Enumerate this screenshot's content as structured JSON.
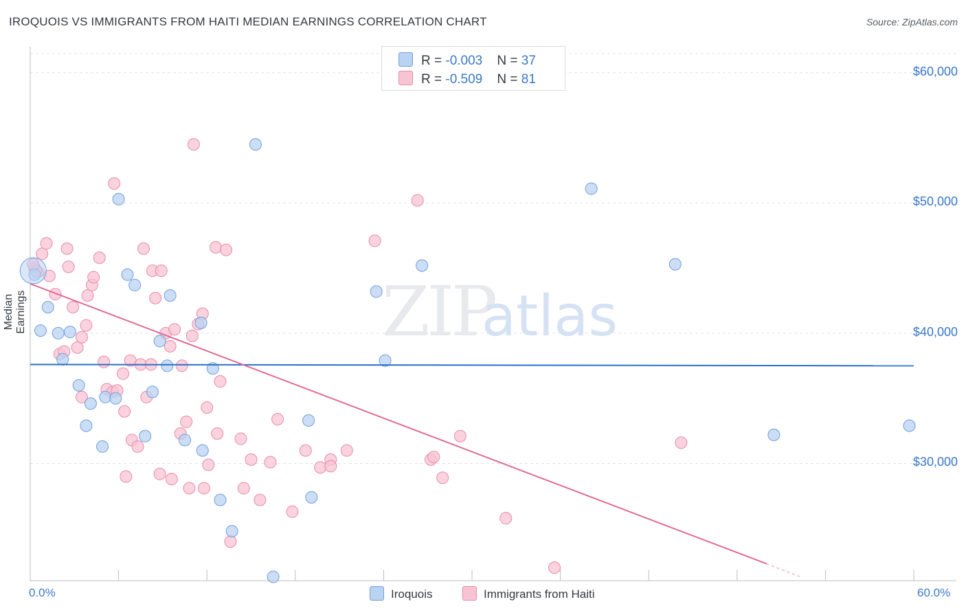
{
  "header": {
    "title": "IROQUOIS VS IMMIGRANTS FROM HAITI MEDIAN EARNINGS CORRELATION CHART",
    "source": "Source: ZipAtlas.com"
  },
  "legend": {
    "rows": [
      {
        "r_label": "R = ",
        "r_value": "-0.003",
        "n_label": "N = ",
        "n_value": "37"
      },
      {
        "r_label": "R = ",
        "r_value": "-0.509",
        "n_label": "N = ",
        "n_value": "81"
      }
    ]
  },
  "colors": {
    "iroquois_fill": "#b9d3f3",
    "iroquois_stroke": "#6f9fd8",
    "iroquois_line": "#2a6fc9",
    "haiti_fill": "#f8c4d4",
    "haiti_stroke": "#e88aa8",
    "haiti_line": "#e06a94",
    "axis_text": "#3a78c8",
    "grid": "#dde1e6"
  },
  "chart_data": {
    "type": "scatter",
    "title": "IROQUOIS VS IMMIGRANTS FROM HAITI MEDIAN EARNINGS CORRELATION CHART",
    "xlabel": "",
    "ylabel": "Median Earnings",
    "x_tick_labels": [
      "0.0%",
      "60.0%"
    ],
    "y_tick_labels": [
      "$30,000",
      "$40,000",
      "$50,000",
      "$60,000"
    ],
    "y_ticks": [
      30000,
      40000,
      50000,
      60000
    ],
    "xlim": [
      0,
      60
    ],
    "ylim": [
      21000,
      62000
    ],
    "grid": true,
    "watermark": "ZIPatlas",
    "series": [
      {
        "name": "Iroquois",
        "r": -0.003,
        "n": 37,
        "trend": {
          "x": [
            0,
            60
          ],
          "y": [
            37600,
            37500
          ]
        },
        "points": [
          [
            0.3,
            44500
          ],
          [
            1.2,
            42000
          ],
          [
            0.7,
            40200
          ],
          [
            1.9,
            40000
          ],
          [
            2.7,
            40100
          ],
          [
            2.2,
            38000
          ],
          [
            3.3,
            36000
          ],
          [
            4.1,
            34600
          ],
          [
            5.1,
            35100
          ],
          [
            5.8,
            35000
          ],
          [
            3.8,
            32900
          ],
          [
            4.9,
            31300
          ],
          [
            6.0,
            50300
          ],
          [
            6.6,
            44500
          ],
          [
            7.1,
            43700
          ],
          [
            8.8,
            39400
          ],
          [
            9.5,
            42900
          ],
          [
            11.6,
            40800
          ],
          [
            9.3,
            37500
          ],
          [
            8.3,
            35500
          ],
          [
            7.8,
            32100
          ],
          [
            10.5,
            31800
          ],
          [
            11.7,
            31000
          ],
          [
            12.4,
            37300
          ],
          [
            12.9,
            27200
          ],
          [
            13.7,
            24800
          ],
          [
            15.3,
            54500
          ],
          [
            16.5,
            21300
          ],
          [
            18.9,
            33300
          ],
          [
            19.1,
            27400
          ],
          [
            23.5,
            43200
          ],
          [
            24.1,
            37900
          ],
          [
            26.6,
            45200
          ],
          [
            38.1,
            51100
          ],
          [
            43.8,
            45300
          ],
          [
            50.5,
            32200
          ],
          [
            59.7,
            32900
          ]
        ]
      },
      {
        "name": "Immigrants from Haiti",
        "r": -0.509,
        "n": 81,
        "trend": {
          "x": [
            0,
            50.0
          ],
          "y": [
            43800,
            22300
          ],
          "dash_to": [
            52.3,
            21300
          ]
        },
        "points": [
          [
            0.3,
            45000
          ],
          [
            0.5,
            44700
          ],
          [
            0.8,
            46100
          ],
          [
            1.1,
            46900
          ],
          [
            1.3,
            44400
          ],
          [
            1.7,
            43000
          ],
          [
            2.0,
            38400
          ],
          [
            2.3,
            38600
          ],
          [
            2.5,
            46500
          ],
          [
            2.6,
            45100
          ],
          [
            2.9,
            42000
          ],
          [
            3.2,
            38900
          ],
          [
            3.5,
            35100
          ],
          [
            3.5,
            39700
          ],
          [
            3.8,
            40600
          ],
          [
            3.9,
            42900
          ],
          [
            4.2,
            43700
          ],
          [
            4.3,
            44300
          ],
          [
            4.7,
            45800
          ],
          [
            5.0,
            37800
          ],
          [
            5.2,
            35700
          ],
          [
            5.6,
            35500
          ],
          [
            5.7,
            51500
          ],
          [
            5.9,
            35600
          ],
          [
            6.3,
            36900
          ],
          [
            6.4,
            34000
          ],
          [
            6.5,
            29000
          ],
          [
            6.8,
            37900
          ],
          [
            6.9,
            31800
          ],
          [
            7.3,
            31300
          ],
          [
            7.5,
            37600
          ],
          [
            7.7,
            46500
          ],
          [
            7.9,
            35100
          ],
          [
            8.2,
            37600
          ],
          [
            8.3,
            44800
          ],
          [
            8.5,
            42700
          ],
          [
            8.8,
            29200
          ],
          [
            8.9,
            44800
          ],
          [
            9.2,
            40000
          ],
          [
            9.5,
            39000
          ],
          [
            9.6,
            28800
          ],
          [
            9.8,
            40300
          ],
          [
            10.2,
            32300
          ],
          [
            10.3,
            37500
          ],
          [
            10.6,
            33200
          ],
          [
            10.8,
            28100
          ],
          [
            11.0,
            39800
          ],
          [
            11.1,
            54500
          ],
          [
            11.4,
            40700
          ],
          [
            11.7,
            41500
          ],
          [
            11.8,
            28100
          ],
          [
            12.0,
            34300
          ],
          [
            12.1,
            29900
          ],
          [
            12.6,
            46600
          ],
          [
            12.7,
            32300
          ],
          [
            12.9,
            36300
          ],
          [
            13.3,
            46400
          ],
          [
            13.6,
            24000
          ],
          [
            14.3,
            31900
          ],
          [
            14.5,
            28100
          ],
          [
            15.0,
            30300
          ],
          [
            15.6,
            27200
          ],
          [
            16.3,
            30100
          ],
          [
            16.8,
            33400
          ],
          [
            17.8,
            26300
          ],
          [
            18.7,
            31000
          ],
          [
            19.7,
            29700
          ],
          [
            20.4,
            30300
          ],
          [
            20.4,
            29800
          ],
          [
            21.5,
            31000
          ],
          [
            23.4,
            47100
          ],
          [
            26.3,
            50200
          ],
          [
            27.2,
            30300
          ],
          [
            27.4,
            30500
          ],
          [
            28.0,
            28900
          ],
          [
            29.2,
            32100
          ],
          [
            32.3,
            25800
          ],
          [
            35.6,
            22000
          ],
          [
            44.2,
            31600
          ],
          [
            0.4,
            44800
          ],
          [
            0.2,
            45300
          ]
        ]
      }
    ]
  }
}
